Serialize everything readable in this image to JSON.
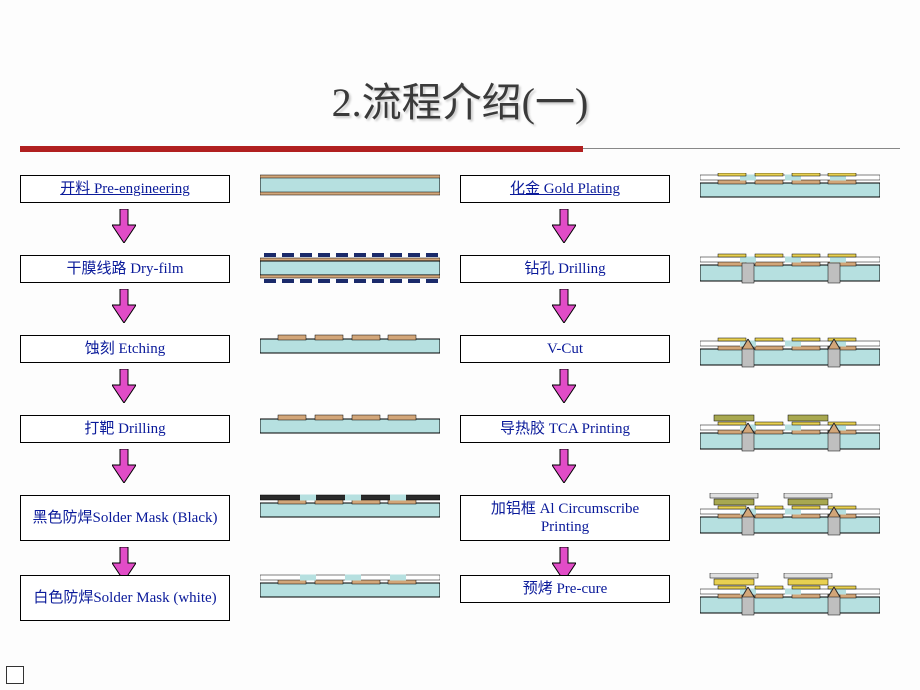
{
  "title": "2.流程介绍(一)",
  "colors": {
    "bg": "#fdfdfd",
    "title": "#3a3a3a",
    "ruleRed": "#b12020",
    "boxBorder": "#000000",
    "boxText": "#0a1a9a",
    "arrowFill": "#e14cc7",
    "arrowStroke": "#000000",
    "teal": "#b6e0e0",
    "tealDark": "#8ecccc",
    "copper": "#d2a679",
    "black": "#2a2a2a",
    "white": "#ffffff",
    "navy": "#1a2a6a",
    "gold": "#e8d050",
    "grey": "#bfbfbf",
    "greyDark": "#9a9a9a",
    "aluminum": "#e0e0e0",
    "olive": "#a8a850"
  },
  "rows": {
    "h1": 28,
    "h2": 46,
    "y": [
      0,
      80,
      160,
      240,
      320,
      400
    ]
  },
  "left": [
    {
      "label": "开料 Pre-engineering",
      "underline": true,
      "illus": "plain"
    },
    {
      "label": "干膜线路 Dry-film",
      "underline": false,
      "illus": "dryfilm"
    },
    {
      "label": "蚀刻 Etching",
      "underline": false,
      "illus": "etch"
    },
    {
      "label": "打靶   Drilling",
      "underline": false,
      "illus": "etch"
    },
    {
      "label": "黑色防焊Solder Mask (Black)",
      "underline": false,
      "illus": "mask-black",
      "tall": true
    },
    {
      "label": "白色防焊Solder Mask (white)",
      "underline": false,
      "illus": "mask-white",
      "tall": true
    }
  ],
  "right": [
    {
      "label": "化金 Gold Plating",
      "underline": true,
      "illus": "gold"
    },
    {
      "label": "钻孔 Drilling",
      "underline": false,
      "illus": "drill"
    },
    {
      "label": "V-Cut",
      "underline": false,
      "illus": "vcut"
    },
    {
      "label": "导热胶 TCA   Printing",
      "underline": false,
      "illus": "tca"
    },
    {
      "label": "加铝框 Al Circumscribe Printing",
      "underline": false,
      "illus": "alu",
      "tall": true
    },
    {
      "label": "预烤 Pre-cure",
      "underline": false,
      "illus": "precure"
    }
  ]
}
